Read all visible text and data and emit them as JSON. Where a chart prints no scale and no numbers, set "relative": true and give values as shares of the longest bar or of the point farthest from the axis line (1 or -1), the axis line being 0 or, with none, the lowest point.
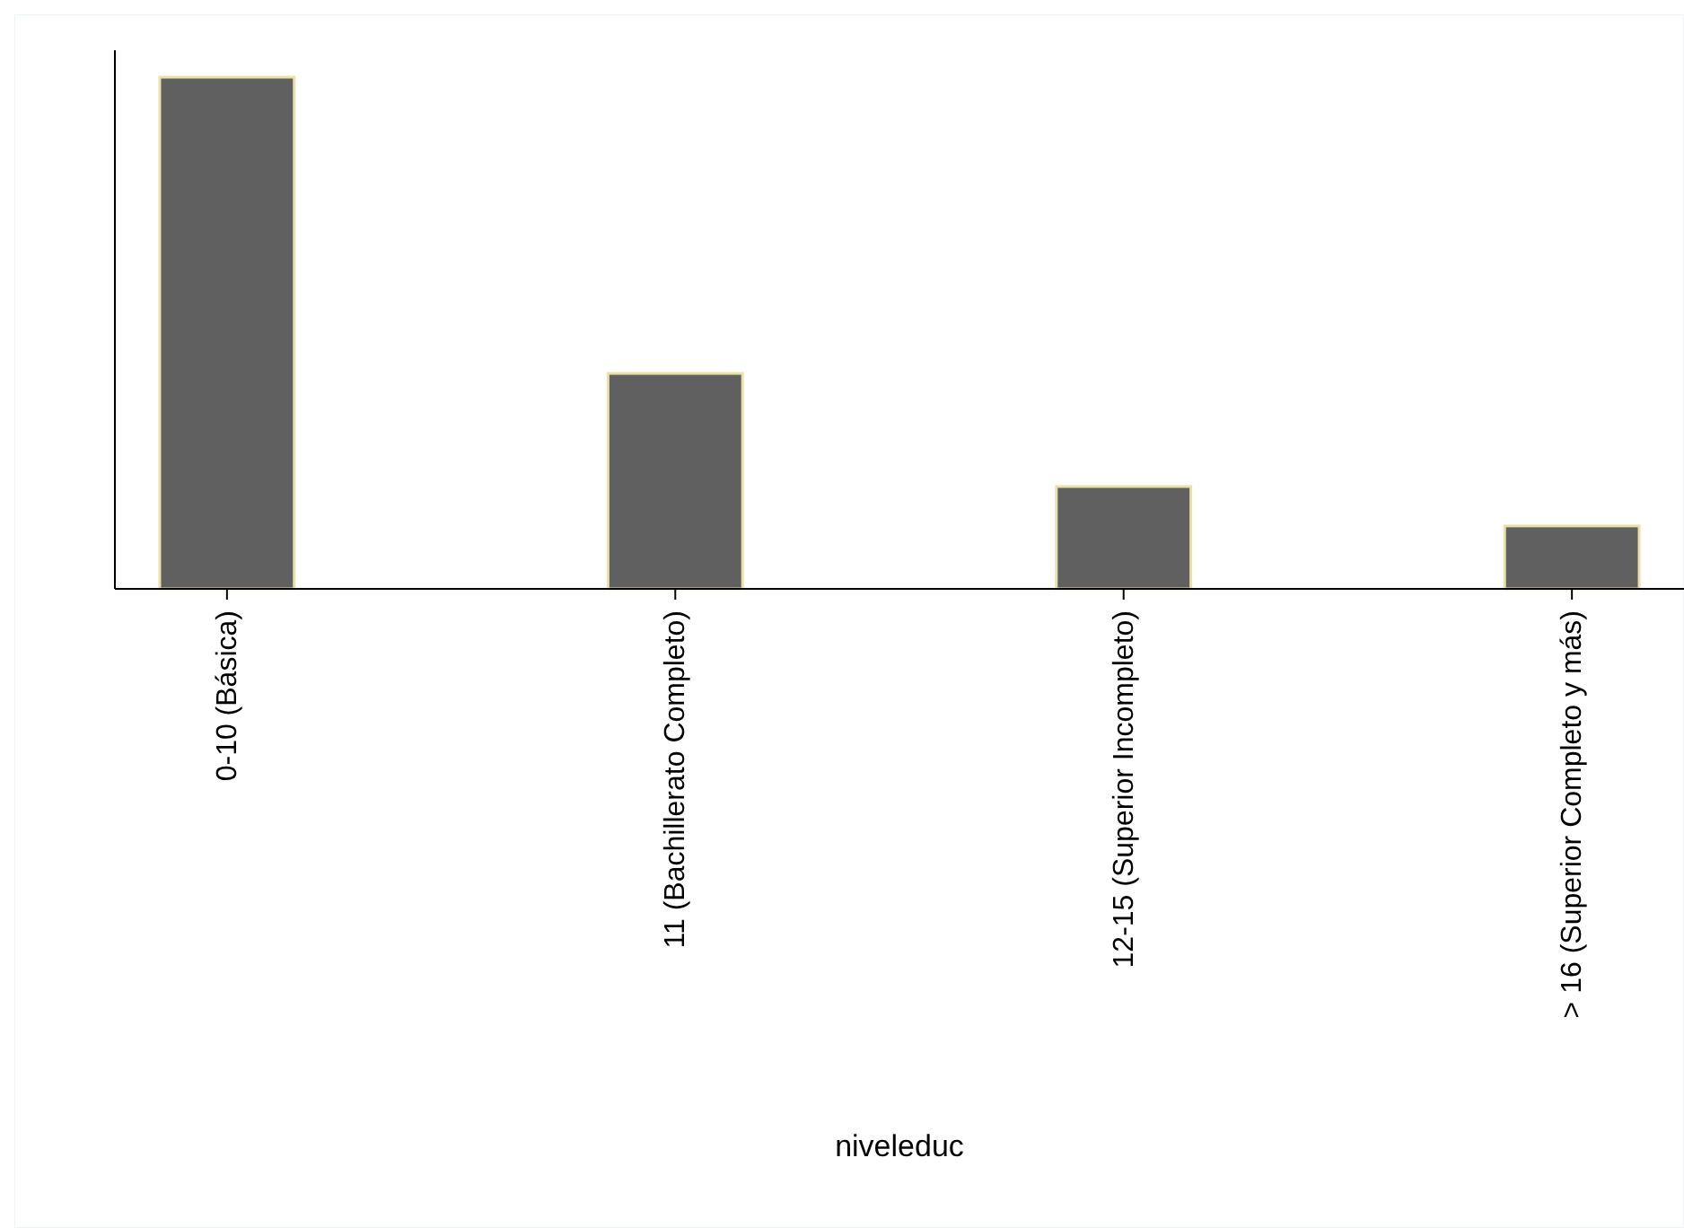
{
  "chart_data": {
    "type": "bar",
    "relative": true,
    "xlabel": "niveleduc",
    "categories": [
      "0-10 (Básica)",
      "11 (Bachillerato Completo)",
      "12-15 (Superior Incompleto)",
      "> 16 (Superior Completo y más)"
    ],
    "values": [
      1,
      0.421,
      0.2,
      0.123
    ],
    "color": "#606060"
  }
}
